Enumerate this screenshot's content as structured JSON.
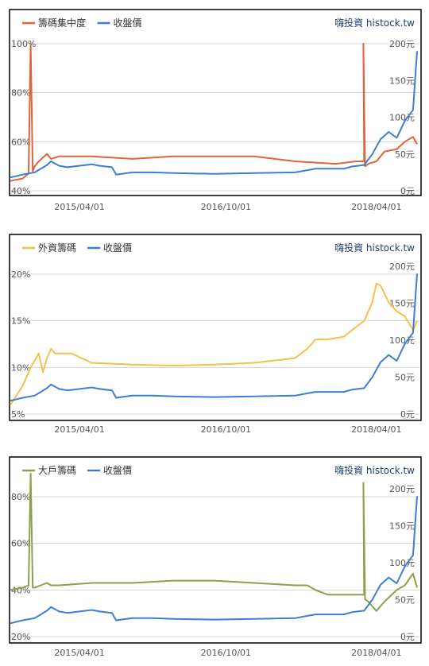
{
  "brand": "嗨投資 histock.tw",
  "colors": {
    "price": "#3a7fd5",
    "grid": "#d4d4d4",
    "frame": "#000000"
  },
  "chart_data": [
    {
      "type": "line",
      "legend": [
        "籌碼集中度",
        "收盤價"
      ],
      "xticks": [
        "2015/04/01",
        "2016/10/01",
        "2018/04/01"
      ],
      "left_ticks": [
        "100%",
        "80%",
        "60%",
        "40%"
      ],
      "right_ticks": [
        "200元",
        "150元",
        "100元",
        "50元",
        "0元"
      ],
      "left_range": [
        40,
        100
      ],
      "right_range": [
        0,
        200
      ],
      "series": [
        {
          "name": "籌碼集中度",
          "axis": "left",
          "color": "#e0633a",
          "x": [
            0,
            0.03,
            0.045,
            0.05,
            0.055,
            0.06,
            0.07,
            0.09,
            0.1,
            0.12,
            0.2,
            0.3,
            0.4,
            0.5,
            0.6,
            0.65,
            0.7,
            0.8,
            0.85,
            0.87,
            0.868,
            0.872,
            0.88,
            0.9,
            0.92,
            0.95,
            0.97,
            0.99,
            1.0
          ],
          "y": [
            44,
            45,
            47,
            100,
            48,
            50,
            52,
            55,
            53,
            54,
            54,
            53,
            54,
            54,
            54,
            53,
            52,
            51,
            52,
            52,
            100,
            50,
            51,
            52,
            56,
            57,
            60,
            62,
            59
          ]
        },
        {
          "name": "收盤價",
          "axis": "right",
          "color": "#3a7fd5",
          "x": [
            0,
            0.03,
            0.06,
            0.09,
            0.1,
            0.12,
            0.14,
            0.2,
            0.22,
            0.25,
            0.26,
            0.3,
            0.35,
            0.4,
            0.5,
            0.6,
            0.7,
            0.75,
            0.82,
            0.84,
            0.87,
            0.89,
            0.91,
            0.93,
            0.95,
            0.97,
            0.99,
            1.0
          ],
          "y": [
            18,
            22,
            25,
            35,
            40,
            34,
            32,
            36,
            34,
            32,
            22,
            25,
            25,
            24,
            23,
            24,
            25,
            30,
            30,
            33,
            35,
            50,
            70,
            80,
            72,
            95,
            110,
            190
          ]
        }
      ]
    },
    {
      "type": "line",
      "legend": [
        "外資籌碼",
        "收盤價"
      ],
      "xticks": [
        "2015/04/01",
        "2016/10/01",
        "2018/04/01"
      ],
      "left_ticks": [
        "20%",
        "15%",
        "10%",
        "5%"
      ],
      "right_ticks": [
        "200元",
        "150元",
        "100元",
        "50元",
        "0元"
      ],
      "left_range": [
        5,
        20
      ],
      "right_range": [
        0,
        200
      ],
      "series": [
        {
          "name": "外資籌碼",
          "axis": "left",
          "color": "#f6c04a",
          "x": [
            0,
            0.03,
            0.05,
            0.07,
            0.08,
            0.09,
            0.1,
            0.11,
            0.12,
            0.15,
            0.2,
            0.3,
            0.4,
            0.5,
            0.6,
            0.7,
            0.73,
            0.75,
            0.78,
            0.82,
            0.84,
            0.87,
            0.89,
            0.9,
            0.91,
            0.93,
            0.95,
            0.97,
            0.99,
            1.0
          ],
          "y": [
            6,
            8,
            10,
            11.5,
            9.5,
            11,
            12,
            11.5,
            11.5,
            11.5,
            10.5,
            10.3,
            10.2,
            10.3,
            10.5,
            11,
            12,
            13,
            13,
            13.3,
            14,
            15,
            17,
            19,
            18.8,
            17,
            16,
            15.5,
            14,
            15
          ]
        },
        {
          "name": "收盤價",
          "axis": "right",
          "color": "#3a7fd5",
          "x": [
            0,
            0.03,
            0.06,
            0.09,
            0.1,
            0.12,
            0.14,
            0.2,
            0.22,
            0.25,
            0.26,
            0.3,
            0.35,
            0.4,
            0.5,
            0.6,
            0.7,
            0.75,
            0.82,
            0.84,
            0.87,
            0.89,
            0.91,
            0.93,
            0.95,
            0.97,
            0.99,
            1.0
          ],
          "y": [
            18,
            22,
            25,
            35,
            40,
            34,
            32,
            36,
            34,
            32,
            22,
            25,
            25,
            24,
            23,
            24,
            25,
            30,
            30,
            33,
            35,
            50,
            70,
            80,
            72,
            95,
            110,
            190
          ]
        }
      ]
    },
    {
      "type": "line",
      "legend": [
        "大戶籌碼",
        "收盤價"
      ],
      "xticks": [
        "2015/04/01",
        "2016/10/01",
        "2018/04/01"
      ],
      "left_ticks": [
        "80%",
        "60%",
        "40%",
        "20%"
      ],
      "right_ticks": [
        "200元",
        "150元",
        "100元",
        "50元",
        "0元"
      ],
      "left_range": [
        20,
        80
      ],
      "right_range": [
        0,
        200
      ],
      "series": [
        {
          "name": "大戶籌碼",
          "axis": "left",
          "color": "#8ba04a",
          "x": [
            0,
            0.03,
            0.045,
            0.05,
            0.055,
            0.06,
            0.09,
            0.1,
            0.12,
            0.2,
            0.3,
            0.4,
            0.5,
            0.6,
            0.7,
            0.73,
            0.75,
            0.78,
            0.85,
            0.87,
            0.868,
            0.872,
            0.88,
            0.9,
            0.92,
            0.95,
            0.97,
            0.99,
            1.0
          ],
          "y": [
            40,
            41,
            42,
            90,
            41,
            41,
            43,
            42,
            42,
            43,
            43,
            44,
            44,
            43,
            42,
            42,
            40,
            38,
            38,
            38,
            86,
            36,
            35,
            31,
            35,
            40,
            42,
            47,
            41
          ]
        },
        {
          "name": "收盤價",
          "axis": "right",
          "color": "#3a7fd5",
          "x": [
            0,
            0.03,
            0.06,
            0.09,
            0.1,
            0.12,
            0.14,
            0.2,
            0.22,
            0.25,
            0.26,
            0.3,
            0.35,
            0.4,
            0.5,
            0.6,
            0.7,
            0.75,
            0.82,
            0.84,
            0.87,
            0.89,
            0.91,
            0.93,
            0.95,
            0.97,
            0.99,
            1.0
          ],
          "y": [
            18,
            22,
            25,
            35,
            40,
            34,
            32,
            36,
            34,
            32,
            22,
            25,
            25,
            24,
            23,
            24,
            25,
            30,
            30,
            33,
            35,
            50,
            70,
            80,
            72,
            95,
            110,
            190
          ]
        }
      ]
    }
  ]
}
